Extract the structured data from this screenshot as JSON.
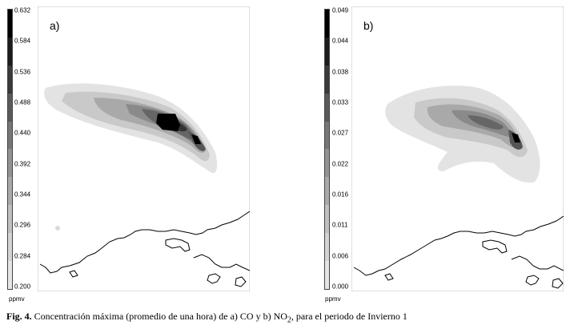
{
  "caption": {
    "label": "Fig. 4.",
    "text_before": " Concentración máxima (promedio de una hora) de a) CO y b) NO",
    "subscript": "2",
    "text_after": ", para el periodo de Invierno 1"
  },
  "panels": [
    {
      "label": "a)",
      "unit": "ppmv",
      "scale_ticks": [
        "0.632",
        "0.584",
        "0.536",
        "0.488",
        "0.440",
        "0.392",
        "0.344",
        "0.296",
        "0.284",
        "0.200"
      ],
      "shades": [
        "#000000",
        "#1c1c1c",
        "#3a3a3a",
        "#5a5a5a",
        "#777777",
        "#939393",
        "#aaaaaa",
        "#c0c0c0",
        "#d4d4d4",
        "#e6e6e6"
      ]
    },
    {
      "label": "b)",
      "unit": "ppmv",
      "scale_ticks": [
        "0.049",
        "0.044",
        "0.038",
        "0.033",
        "0.027",
        "0.022",
        "0.016",
        "0.011",
        "0.006",
        "0.000"
      ],
      "shades": [
        "#000000",
        "#1c1c1c",
        "#3a3a3a",
        "#5a5a5a",
        "#777777",
        "#939393",
        "#aaaaaa",
        "#c0c0c0",
        "#d4d4d4",
        "#e6e6e6"
      ]
    }
  ]
}
